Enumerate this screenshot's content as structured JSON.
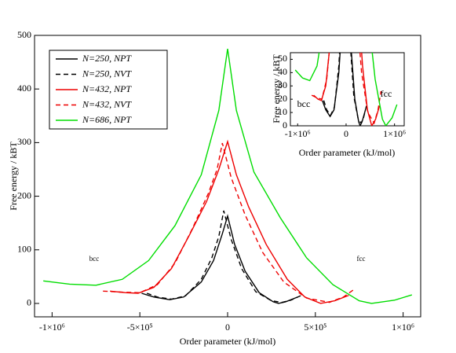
{
  "chart_data": {
    "type": "line",
    "xlabel": "Order parameter (kJ/mol)",
    "ylabel": "Free energy / kBT",
    "xlim": [
      -1100000,
      1100000
    ],
    "ylim": [
      -25,
      500
    ],
    "xticks": [
      {
        "value": -1000000,
        "label": "-1×10⁶"
      },
      {
        "value": -500000,
        "label": "-5×10⁵"
      },
      0,
      {
        "value": 500000,
        "label": "5×10⁵"
      },
      {
        "value": 1000000,
        "label": "1×10⁶"
      }
    ],
    "yticks": [
      0,
      100,
      200,
      300,
      400,
      500
    ],
    "legend": "upper left",
    "annotations": [
      "bcc",
      "fcc"
    ],
    "series": [
      {
        "name": "N=250, NPT",
        "color": "#000000",
        "style": "solid",
        "x": [
          -490000,
          -420000,
          -330000,
          -250000,
          -150000,
          -80000,
          -30000,
          0,
          40000,
          100000,
          180000,
          260000,
          290000,
          330000,
          400000
        ],
        "values": [
          19,
          12,
          7,
          12,
          40,
          80,
          130,
          163,
          110,
          60,
          20,
          3,
          0,
          3,
          12
        ]
      },
      {
        "name": "N=250, NVT",
        "color": "#000000",
        "style": "dashed",
        "x": [
          -460000,
          -400000,
          -320000,
          -240000,
          -150000,
          -90000,
          -50000,
          -22000,
          20000,
          80000,
          160000,
          250000,
          310000,
          360000,
          420000
        ],
        "values": [
          19,
          12,
          8,
          14,
          45,
          85,
          125,
          173,
          120,
          65,
          22,
          5,
          2,
          6,
          15
        ]
      },
      {
        "name": "N=432, NPT",
        "color": "#ee0000",
        "style": "solid",
        "x": [
          -670000,
          -580000,
          -510000,
          -420000,
          -320000,
          -220000,
          -120000,
          -50000,
          0,
          50000,
          120000,
          220000,
          340000,
          440000,
          530000,
          610000,
          690000
        ],
        "values": [
          23,
          20,
          19,
          30,
          65,
          126,
          190,
          250,
          302,
          240,
          180,
          110,
          45,
          12,
          0,
          5,
          15
        ]
      },
      {
        "name": "N=432, NVT",
        "color": "#ee0000",
        "style": "dashed",
        "x": [
          -710000,
          -600000,
          -500000,
          -400000,
          -300000,
          -200000,
          -110000,
          -60000,
          -30000,
          20000,
          100000,
          200000,
          320000,
          450000,
          580000,
          660000,
          720000
        ],
        "values": [
          23,
          21,
          20,
          35,
          75,
          140,
          205,
          250,
          299,
          235,
          165,
          95,
          40,
          10,
          2,
          12,
          26
        ]
      },
      {
        "name": "N=686, NPT",
        "color": "#00dd00",
        "style": "solid",
        "x": [
          -1050000,
          -900000,
          -750000,
          -600000,
          -450000,
          -300000,
          -150000,
          -50000,
          0,
          50000,
          150000,
          300000,
          450000,
          600000,
          750000,
          820000,
          950000,
          1050000
        ],
        "values": [
          42,
          36,
          34,
          45,
          80,
          145,
          240,
          360,
          475,
          360,
          245,
          160,
          85,
          35,
          5,
          0,
          6,
          16
        ]
      }
    ],
    "inset": {
      "xlabel": "Order parameter (kJ/mol)",
      "ylabel": "Free energy / kBT",
      "xlim": [
        -1150000,
        1200000
      ],
      "ylim": [
        0,
        55
      ],
      "xticks": [
        {
          "value": -1000000,
          "label": "-1×10⁶"
        },
        0,
        {
          "value": 1000000,
          "label": "1×10⁶"
        }
      ],
      "yticks": [
        0,
        10,
        20,
        30,
        40,
        50
      ],
      "annotations": [
        "bcc",
        "fcc"
      ]
    }
  }
}
